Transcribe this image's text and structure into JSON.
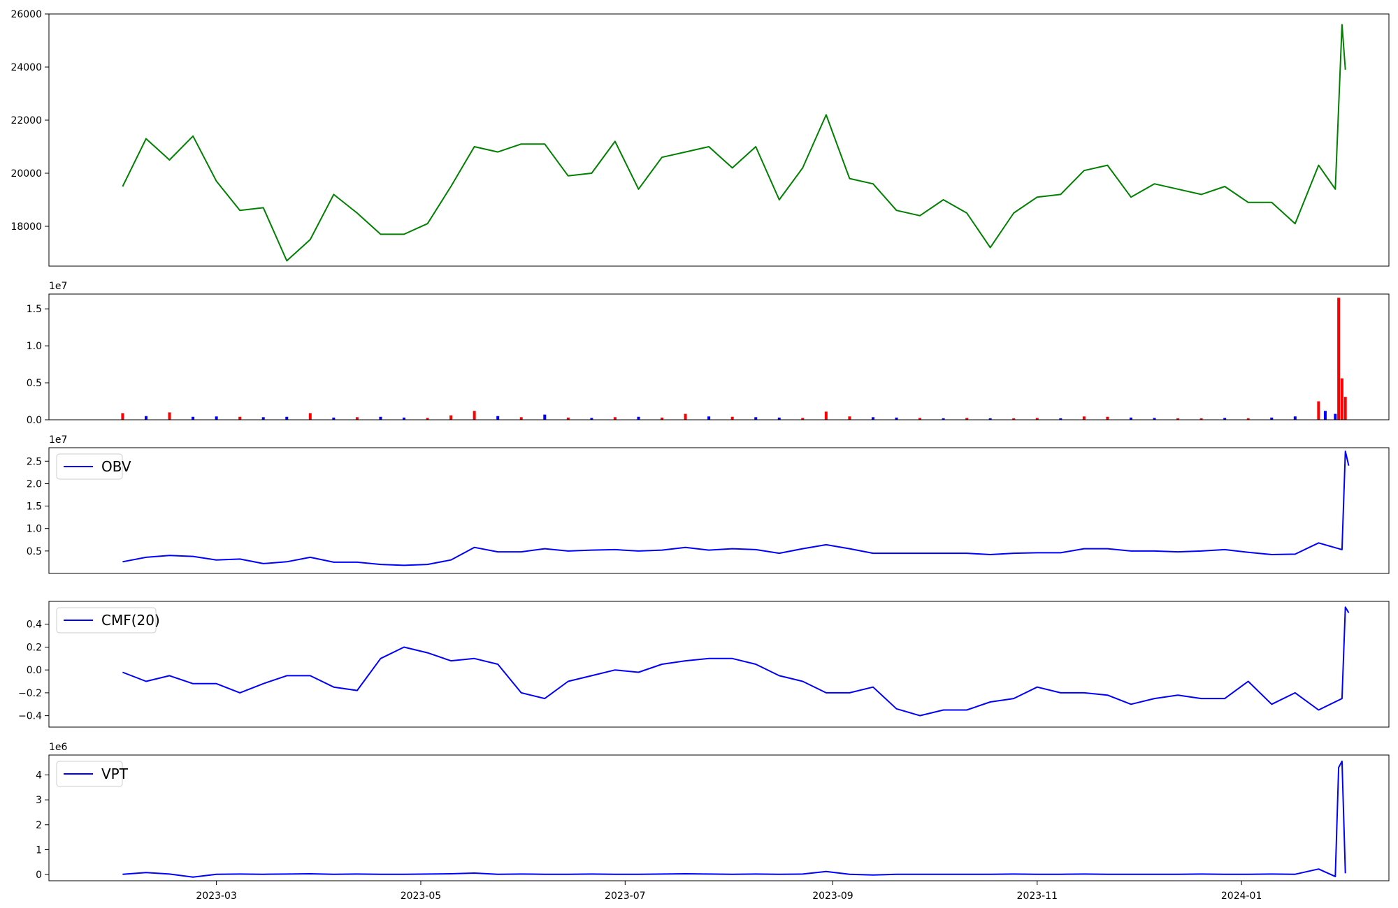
{
  "figure": {
    "background": "#ffffff"
  },
  "x_axis": {
    "range": [
      "2023-01-10",
      "2024-02-14"
    ],
    "ticks": [
      {
        "date": "2023-03-01",
        "label": "2023-03"
      },
      {
        "date": "2023-05-01",
        "label": "2023-05"
      },
      {
        "date": "2023-07-01",
        "label": "2023-07"
      },
      {
        "date": "2023-09-01",
        "label": "2023-09"
      },
      {
        "date": "2023-11-01",
        "label": "2023-11"
      },
      {
        "date": "2024-01-01",
        "label": "2024-01"
      }
    ]
  },
  "chart_data": [
    {
      "type": "line",
      "color": "#008000",
      "grid": false,
      "ylim": [
        16500,
        26000
      ],
      "y_ticks": [
        18000,
        20000,
        22000,
        24000,
        26000
      ],
      "y_tick_labels": [
        "18000",
        "20000",
        "22000",
        "24000",
        "26000"
      ],
      "x": [
        "2023-02-01",
        "2023-02-08",
        "2023-02-15",
        "2023-02-22",
        "2023-03-01",
        "2023-03-08",
        "2023-03-15",
        "2023-03-22",
        "2023-03-29",
        "2023-04-05",
        "2023-04-12",
        "2023-04-19",
        "2023-04-26",
        "2023-05-03",
        "2023-05-10",
        "2023-05-17",
        "2023-05-24",
        "2023-05-31",
        "2023-06-07",
        "2023-06-14",
        "2023-06-21",
        "2023-06-28",
        "2023-07-05",
        "2023-07-12",
        "2023-07-19",
        "2023-07-26",
        "2023-08-02",
        "2023-08-09",
        "2023-08-16",
        "2023-08-23",
        "2023-08-30",
        "2023-09-06",
        "2023-09-13",
        "2023-09-20",
        "2023-09-27",
        "2023-10-04",
        "2023-10-11",
        "2023-10-18",
        "2023-10-25",
        "2023-11-01",
        "2023-11-08",
        "2023-11-15",
        "2023-11-22",
        "2023-11-29",
        "2023-12-06",
        "2023-12-13",
        "2023-12-20",
        "2023-12-27",
        "2024-01-03",
        "2024-01-10",
        "2024-01-17",
        "2024-01-24",
        "2024-01-29",
        "2024-01-31",
        "2024-02-01"
      ],
      "y": [
        19500,
        21300,
        20500,
        21400,
        19700,
        18600,
        18700,
        16700,
        17500,
        19200,
        18500,
        17700,
        17700,
        18100,
        19500,
        21000,
        20800,
        21100,
        21100,
        19900,
        20000,
        21200,
        19400,
        20600,
        20800,
        21000,
        20200,
        21000,
        19000,
        20200,
        22200,
        19800,
        19600,
        18600,
        18400,
        19000,
        18500,
        17200,
        18500,
        19100,
        19200,
        20100,
        20300,
        19100,
        19600,
        19400,
        19200,
        19500,
        18900,
        18900,
        18100,
        20300,
        19400,
        25600,
        23900
      ]
    },
    {
      "type": "bar",
      "grid": false,
      "offset_label": "1e7",
      "ylim": [
        0,
        17000000
      ],
      "y_ticks": [
        0,
        5000000,
        10000000,
        15000000
      ],
      "y_tick_labels": [
        "0.0",
        "0.5",
        "1.0",
        "1.5"
      ],
      "colors": {
        "up": "#ff0000",
        "down": "#0000ff"
      },
      "x": [
        "2023-02-01",
        "2023-02-08",
        "2023-02-15",
        "2023-02-22",
        "2023-03-01",
        "2023-03-08",
        "2023-03-15",
        "2023-03-22",
        "2023-03-29",
        "2023-04-05",
        "2023-04-12",
        "2023-04-19",
        "2023-04-26",
        "2023-05-03",
        "2023-05-10",
        "2023-05-17",
        "2023-05-24",
        "2023-05-31",
        "2023-06-07",
        "2023-06-14",
        "2023-06-21",
        "2023-06-28",
        "2023-07-05",
        "2023-07-12",
        "2023-07-19",
        "2023-07-26",
        "2023-08-02",
        "2023-08-09",
        "2023-08-16",
        "2023-08-23",
        "2023-08-30",
        "2023-09-06",
        "2023-09-13",
        "2023-09-20",
        "2023-09-27",
        "2023-10-04",
        "2023-10-11",
        "2023-10-18",
        "2023-10-25",
        "2023-11-01",
        "2023-11-08",
        "2023-11-15",
        "2023-11-22",
        "2023-11-29",
        "2023-12-06",
        "2023-12-13",
        "2023-12-20",
        "2023-12-27",
        "2024-01-03",
        "2024-01-10",
        "2024-01-17",
        "2024-01-24",
        "2024-01-26",
        "2024-01-29",
        "2024-01-30",
        "2024-01-31",
        "2024-02-01"
      ],
      "values": [
        900000,
        500000,
        1000000,
        400000,
        450000,
        400000,
        350000,
        400000,
        900000,
        300000,
        350000,
        400000,
        300000,
        250000,
        600000,
        1200000,
        500000,
        350000,
        700000,
        300000,
        250000,
        350000,
        400000,
        300000,
        800000,
        450000,
        400000,
        350000,
        300000,
        250000,
        1100000,
        450000,
        350000,
        300000,
        250000,
        200000,
        250000,
        200000,
        200000,
        250000,
        200000,
        450000,
        400000,
        300000,
        250000,
        200000,
        200000,
        250000,
        200000,
        300000,
        450000,
        2500000,
        1200000,
        800000,
        16500000,
        5600000,
        3100000
      ],
      "direction": [
        "up",
        "down",
        "up",
        "down",
        "down",
        "up",
        "down",
        "down",
        "up",
        "down",
        "up",
        "down",
        "down",
        "up",
        "up",
        "up",
        "down",
        "up",
        "down",
        "up",
        "down",
        "up",
        "down",
        "up",
        "up",
        "down",
        "up",
        "down",
        "down",
        "up",
        "up",
        "up",
        "down",
        "down",
        "up",
        "down",
        "up",
        "down",
        "up",
        "up",
        "down",
        "up",
        "up",
        "down",
        "down",
        "up",
        "up",
        "down",
        "up",
        "down",
        "down",
        "up",
        "down",
        "down",
        "up",
        "up",
        "up"
      ]
    },
    {
      "type": "line",
      "color": "#0000ff",
      "grid": false,
      "offset_label": "1e7",
      "legend": {
        "entries": [
          "OBV"
        ],
        "position": "upper left"
      },
      "ylim": [
        0,
        28000000
      ],
      "y_ticks": [
        5000000,
        10000000,
        15000000,
        20000000,
        25000000
      ],
      "y_tick_labels": [
        "0.5",
        "1.0",
        "1.5",
        "2.0",
        "2.5"
      ],
      "x": [
        "2023-02-01",
        "2023-02-08",
        "2023-02-15",
        "2023-02-22",
        "2023-03-01",
        "2023-03-08",
        "2023-03-15",
        "2023-03-22",
        "2023-03-29",
        "2023-04-05",
        "2023-04-12",
        "2023-04-19",
        "2023-04-26",
        "2023-05-03",
        "2023-05-10",
        "2023-05-17",
        "2023-05-24",
        "2023-05-31",
        "2023-06-07",
        "2023-06-14",
        "2023-06-21",
        "2023-06-28",
        "2023-07-05",
        "2023-07-12",
        "2023-07-19",
        "2023-07-26",
        "2023-08-02",
        "2023-08-09",
        "2023-08-16",
        "2023-08-23",
        "2023-08-30",
        "2023-09-06",
        "2023-09-13",
        "2023-09-20",
        "2023-09-27",
        "2023-10-04",
        "2023-10-11",
        "2023-10-18",
        "2023-10-25",
        "2023-11-01",
        "2023-11-08",
        "2023-11-15",
        "2023-11-22",
        "2023-11-29",
        "2023-12-06",
        "2023-12-13",
        "2023-12-20",
        "2023-12-27",
        "2024-01-03",
        "2024-01-10",
        "2024-01-17",
        "2024-01-24",
        "2024-01-31",
        "2024-02-01",
        "2024-02-02"
      ],
      "y": [
        2600000,
        3600000,
        4000000,
        3800000,
        3000000,
        3200000,
        2200000,
        2600000,
        3600000,
        2500000,
        2500000,
        2000000,
        1800000,
        2000000,
        3000000,
        5800000,
        4800000,
        4800000,
        5500000,
        5000000,
        5200000,
        5300000,
        5000000,
        5200000,
        5800000,
        5200000,
        5500000,
        5300000,
        4500000,
        5500000,
        6400000,
        5500000,
        4500000,
        4500000,
        4500000,
        4500000,
        4500000,
        4200000,
        4500000,
        4600000,
        4600000,
        5500000,
        5500000,
        5000000,
        5000000,
        4800000,
        5000000,
        5300000,
        4700000,
        4200000,
        4300000,
        6800000,
        5300000,
        27200000,
        24000000
      ]
    },
    {
      "type": "line",
      "color": "#0000ff",
      "grid": false,
      "legend": {
        "entries": [
          "CMF(20)"
        ],
        "position": "upper left"
      },
      "ylim": [
        -0.5,
        0.6
      ],
      "y_ticks": [
        -0.4,
        -0.2,
        0.0,
        0.2,
        0.4
      ],
      "y_tick_labels": [
        "−0.4",
        "−0.2",
        "0.0",
        "0.2",
        "0.4"
      ],
      "x": [
        "2023-02-01",
        "2023-02-08",
        "2023-02-15",
        "2023-02-22",
        "2023-03-01",
        "2023-03-08",
        "2023-03-15",
        "2023-03-22",
        "2023-03-29",
        "2023-04-05",
        "2023-04-12",
        "2023-04-19",
        "2023-04-26",
        "2023-05-03",
        "2023-05-10",
        "2023-05-17",
        "2023-05-24",
        "2023-05-31",
        "2023-06-07",
        "2023-06-14",
        "2023-06-21",
        "2023-06-28",
        "2023-07-05",
        "2023-07-12",
        "2023-07-19",
        "2023-07-26",
        "2023-08-02",
        "2023-08-09",
        "2023-08-16",
        "2023-08-23",
        "2023-08-30",
        "2023-09-06",
        "2023-09-13",
        "2023-09-20",
        "2023-09-27",
        "2023-10-04",
        "2023-10-11",
        "2023-10-18",
        "2023-10-25",
        "2023-11-01",
        "2023-11-08",
        "2023-11-15",
        "2023-11-22",
        "2023-11-29",
        "2023-12-06",
        "2023-12-13",
        "2023-12-20",
        "2023-12-27",
        "2024-01-03",
        "2024-01-10",
        "2024-01-17",
        "2024-01-24",
        "2024-01-31",
        "2024-02-01",
        "2024-02-02"
      ],
      "y": [
        -0.02,
        -0.1,
        -0.05,
        -0.12,
        -0.12,
        -0.2,
        -0.12,
        -0.05,
        -0.05,
        -0.15,
        -0.18,
        0.1,
        0.2,
        0.15,
        0.08,
        0.1,
        0.05,
        -0.2,
        -0.25,
        -0.1,
        -0.05,
        0.0,
        -0.02,
        0.05,
        0.08,
        0.1,
        0.1,
        0.05,
        -0.05,
        -0.1,
        -0.2,
        -0.2,
        -0.15,
        -0.34,
        -0.4,
        -0.35,
        -0.35,
        -0.28,
        -0.25,
        -0.15,
        -0.2,
        -0.2,
        -0.22,
        -0.3,
        -0.25,
        -0.22,
        -0.25,
        -0.25,
        -0.1,
        -0.3,
        -0.2,
        -0.35,
        -0.25,
        0.55,
        0.5
      ]
    },
    {
      "type": "line",
      "color": "#0000ff",
      "grid": false,
      "offset_label": "1e6",
      "legend": {
        "entries": [
          "VPT"
        ],
        "position": "upper left"
      },
      "ylim": [
        -250000,
        4800000
      ],
      "y_ticks": [
        0,
        1000000,
        2000000,
        3000000,
        4000000
      ],
      "y_tick_labels": [
        "0",
        "1",
        "2",
        "3",
        "4"
      ],
      "x": [
        "2023-02-01",
        "2023-02-08",
        "2023-02-15",
        "2023-02-22",
        "2023-03-01",
        "2023-03-08",
        "2023-03-15",
        "2023-03-22",
        "2023-03-29",
        "2023-04-05",
        "2023-04-12",
        "2023-04-19",
        "2023-04-26",
        "2023-05-03",
        "2023-05-10",
        "2023-05-17",
        "2023-05-24",
        "2023-05-31",
        "2023-06-07",
        "2023-06-14",
        "2023-06-21",
        "2023-06-28",
        "2023-07-05",
        "2023-07-12",
        "2023-07-19",
        "2023-07-26",
        "2023-08-02",
        "2023-08-09",
        "2023-08-16",
        "2023-08-23",
        "2023-08-30",
        "2023-09-06",
        "2023-09-13",
        "2023-09-20",
        "2023-09-27",
        "2023-10-04",
        "2023-10-11",
        "2023-10-18",
        "2023-10-25",
        "2023-11-01",
        "2023-11-08",
        "2023-11-15",
        "2023-11-22",
        "2023-11-29",
        "2023-12-06",
        "2023-12-13",
        "2023-12-20",
        "2023-12-27",
        "2024-01-03",
        "2024-01-10",
        "2024-01-17",
        "2024-01-24",
        "2024-01-29",
        "2024-01-30",
        "2024-01-31",
        "2024-02-01"
      ],
      "y": [
        10000,
        80000,
        20000,
        -100000,
        10000,
        20000,
        10000,
        20000,
        30000,
        10000,
        20000,
        10000,
        10000,
        20000,
        30000,
        60000,
        10000,
        20000,
        10000,
        10000,
        20000,
        10000,
        10000,
        20000,
        30000,
        20000,
        10000,
        20000,
        10000,
        20000,
        120000,
        10000,
        -20000,
        10000,
        10000,
        10000,
        10000,
        10000,
        20000,
        10000,
        10000,
        20000,
        10000,
        10000,
        10000,
        10000,
        20000,
        10000,
        10000,
        20000,
        10000,
        220000,
        -80000,
        4300000,
        4550000,
        50000
      ]
    }
  ]
}
